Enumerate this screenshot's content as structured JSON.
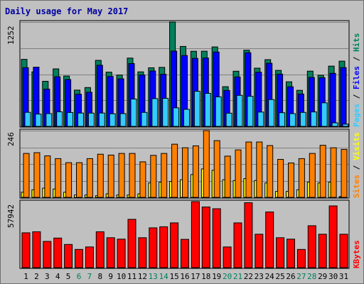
{
  "chart_data": {
    "type": "bar",
    "title": "Daily usage for May 2017",
    "categories": [
      "1",
      "2",
      "3",
      "4",
      "5",
      "6",
      "7",
      "8",
      "9",
      "10",
      "11",
      "12",
      "13",
      "14",
      "15",
      "16",
      "17",
      "18",
      "19",
      "20",
      "21",
      "22",
      "23",
      "24",
      "25",
      "26",
      "27",
      "28",
      "29",
      "30",
      "31"
    ],
    "weekend_days": [
      "6",
      "7",
      "13",
      "14",
      "20",
      "21",
      "27",
      "28"
    ],
    "panels": [
      {
        "id": "top",
        "max_label": "1252",
        "ylim": [
          0,
          1252
        ],
        "grid": true,
        "side_label_parts": [
          {
            "text": "Pages",
            "color": "#33ccff"
          },
          {
            "text": " / ",
            "color": "#000000"
          },
          {
            "text": "Files",
            "color": "#0000ff"
          },
          {
            "text": " / ",
            "color": "#000000"
          },
          {
            "text": "Hits",
            "color": "#00805c"
          }
        ],
        "series": [
          {
            "name": "Hits",
            "color": "#00805c",
            "values": [
              804,
              654,
              541,
              690,
              604,
              435,
              466,
              792,
              651,
              616,
              819,
              654,
              703,
              708,
              1252,
              959,
              901,
              902,
              953,
              476,
              662,
              914,
              698,
              801,
              672,
              535,
              433,
              663,
              613,
              723,
              783
            ]
          },
          {
            "name": "Files",
            "color": "#0000ff",
            "values": [
              704,
              710,
              447,
              595,
              562,
              386,
              410,
              733,
              599,
              571,
              754,
              617,
              665,
              625,
              903,
              850,
              816,
              820,
              892,
              431,
              593,
              883,
              650,
              757,
              627,
              475,
              388,
              588,
              583,
              636,
              705
            ]
          },
          {
            "name": "Pages",
            "color": "#33ccff",
            "values": [
              169,
              147,
              153,
              175,
              167,
              160,
              159,
              160,
              152,
              153,
              328,
              168,
              333,
              336,
              222,
              204,
              421,
              396,
              354,
              158,
              372,
              361,
              172,
              322,
              164,
              153,
              168,
              174,
              283,
              43,
              27
            ]
          }
        ]
      },
      {
        "id": "middle",
        "max_label": "246",
        "ylim": [
          0,
          246
        ],
        "grid": true,
        "side_label_parts": [
          {
            "text": "Sites",
            "color": "#ff8000"
          },
          {
            "text": " / ",
            "color": "#000000"
          },
          {
            "text": "Visits",
            "color": "#ffff00"
          }
        ],
        "series": [
          {
            "name": "Visits",
            "color": "#ffff00",
            "values": [
              19,
              28,
              34,
              31,
              19,
              9,
              9,
              6,
              13,
              9,
              9,
              13,
              53,
              56,
              59,
              65,
              84,
              105,
              100,
              65,
              62,
              69,
              62,
              53,
              22,
              22,
              28,
              56,
              53,
              56,
              3
            ]
          },
          {
            "name": "Sites",
            "color": "#ff8000",
            "values": [
              162,
              165,
              153,
              143,
              128,
              128,
              143,
              159,
              156,
              162,
              162,
              131,
              155,
              162,
              196,
              183,
              190,
              246,
              209,
              152,
              175,
              204,
              204,
              191,
              140,
              127,
              143,
              162,
              192,
              183,
              177
            ]
          }
        ]
      },
      {
        "id": "bottom",
        "max_label": "57942",
        "ylim": [
          0,
          57942
        ],
        "grid": false,
        "side_label_parts": [
          {
            "text": "KBytes",
            "color": "#ff0000"
          }
        ],
        "series": [
          {
            "name": "KBytes",
            "color": "#ff0000",
            "values": [
              30592,
              31524,
              23030,
              25962,
              20370,
              16005,
              18202,
              31524,
              26305,
              25065,
              42405,
              26305,
              34963,
              35897,
              39325,
              24875,
              57942,
              53260,
              51700,
              18202,
              39325,
              57003,
              29335,
              48897,
              26305,
              25065,
              16005,
              36832,
              29335,
              54200,
              29335
            ]
          }
        ]
      }
    ]
  }
}
